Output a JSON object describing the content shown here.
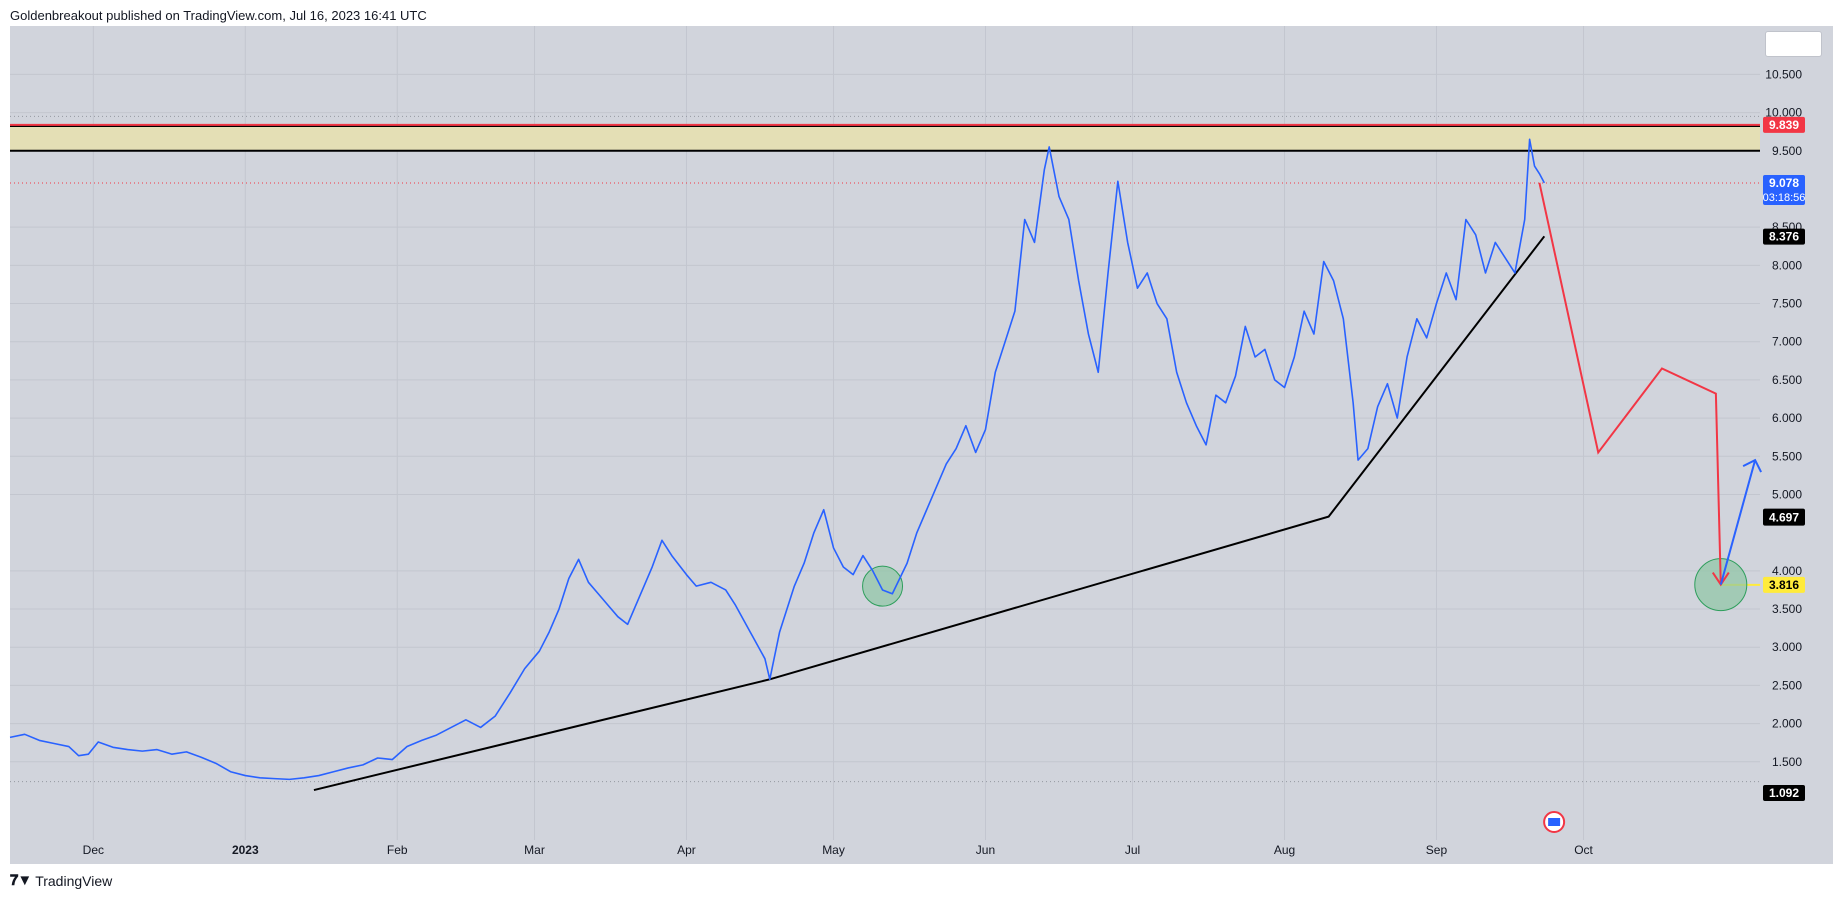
{
  "header": {
    "published": "Goldenbreakout published on TradingView.com, Jul 16, 2023 16:41 UTC"
  },
  "footer": {
    "brand": "TradingView",
    "logo_icon": "tradingview-logo-icon"
  },
  "colors": {
    "price_line": "#2962ff",
    "background": "#d1d4dc",
    "resistance_zone": "#e4dfb5",
    "red": "#f23645",
    "yellow": "#ffeb3b",
    "circle_fill": "#8fc6a4",
    "circle_stroke": "#2e9e5c",
    "label_dark": "#000000",
    "label_blue": "#2962ff",
    "label_red": "#f23645",
    "label_yellow": "#ffeb3b"
  },
  "chart_data": {
    "type": "line",
    "symbol_price_axis": {
      "ticks": [
        "10.500",
        "10.000",
        "9.500",
        "8.500",
        "8.000",
        "7.500",
        "7.000",
        "6.500",
        "6.000",
        "5.500",
        "5.000",
        "4.000",
        "3.500",
        "3.000",
        "2.500",
        "2.000",
        "1.500"
      ],
      "range": [
        1.0,
        10.95
      ]
    },
    "time_axis": {
      "ticks": [
        {
          "label": "Dec",
          "date": "2022-12-01",
          "bold": false
        },
        {
          "label": "2023",
          "date": "2023-01-01",
          "bold": true
        },
        {
          "label": "Feb",
          "date": "2023-02-01",
          "bold": false
        },
        {
          "label": "Mar",
          "date": "2023-03-01",
          "bold": false
        },
        {
          "label": "Apr",
          "date": "2023-04-01",
          "bold": false
        },
        {
          "label": "May",
          "date": "2023-05-01",
          "bold": false
        },
        {
          "label": "Jun",
          "date": "2023-06-01",
          "bold": false
        },
        {
          "label": "Jul",
          "date": "2023-07-01",
          "bold": false
        },
        {
          "label": "Aug",
          "date": "2023-08-01",
          "bold": false
        },
        {
          "label": "Sep",
          "date": "2023-09-01",
          "bold": false
        },
        {
          "label": "Oct",
          "date": "2023-10-01",
          "bold": false
        }
      ],
      "range": [
        "2022-11-14",
        "2023-11-06"
      ]
    },
    "series": [
      {
        "points": [
          [
            "2022-11-14",
            1.82
          ],
          [
            "2022-11-17",
            1.86
          ],
          [
            "2022-11-20",
            1.78
          ],
          [
            "2022-11-23",
            1.74
          ],
          [
            "2022-11-26",
            1.7
          ],
          [
            "2022-11-28",
            1.58
          ],
          [
            "2022-11-30",
            1.6
          ],
          [
            "2022-12-02",
            1.76
          ],
          [
            "2022-12-05",
            1.69
          ],
          [
            "2022-12-08",
            1.66
          ],
          [
            "2022-12-11",
            1.64
          ],
          [
            "2022-12-14",
            1.66
          ],
          [
            "2022-12-17",
            1.6
          ],
          [
            "2022-12-20",
            1.63
          ],
          [
            "2022-12-23",
            1.56
          ],
          [
            "2022-12-26",
            1.48
          ],
          [
            "2022-12-29",
            1.37
          ],
          [
            "2023-01-01",
            1.32
          ],
          [
            "2023-01-04",
            1.29
          ],
          [
            "2023-01-07",
            1.28
          ],
          [
            "2023-01-10",
            1.27
          ],
          [
            "2023-01-13",
            1.29
          ],
          [
            "2023-01-16",
            1.32
          ],
          [
            "2023-01-19",
            1.37
          ],
          [
            "2023-01-22",
            1.42
          ],
          [
            "2023-01-25",
            1.46
          ],
          [
            "2023-01-28",
            1.55
          ],
          [
            "2023-01-31",
            1.53
          ],
          [
            "2023-02-03",
            1.7
          ],
          [
            "2023-02-06",
            1.78
          ],
          [
            "2023-02-09",
            1.85
          ],
          [
            "2023-02-12",
            1.95
          ],
          [
            "2023-02-15",
            2.05
          ],
          [
            "2023-02-18",
            1.95
          ],
          [
            "2023-02-21",
            2.1
          ],
          [
            "2023-02-24",
            2.4
          ],
          [
            "2023-02-27",
            2.72
          ],
          [
            "2023-03-02",
            2.95
          ],
          [
            "2023-03-04",
            3.2
          ],
          [
            "2023-03-06",
            3.5
          ],
          [
            "2023-03-08",
            3.9
          ],
          [
            "2023-03-10",
            4.15
          ],
          [
            "2023-03-12",
            3.85
          ],
          [
            "2023-03-14",
            3.7
          ],
          [
            "2023-03-16",
            3.55
          ],
          [
            "2023-03-18",
            3.4
          ],
          [
            "2023-03-20",
            3.3
          ],
          [
            "2023-03-22",
            3.6
          ],
          [
            "2023-03-25",
            4.05
          ],
          [
            "2023-03-27",
            4.4
          ],
          [
            "2023-03-29",
            4.2
          ],
          [
            "2023-04-01",
            3.95
          ],
          [
            "2023-04-03",
            3.8
          ],
          [
            "2023-04-06",
            3.85
          ],
          [
            "2023-04-09",
            3.75
          ],
          [
            "2023-04-11",
            3.55
          ],
          [
            "2023-04-14",
            3.2
          ],
          [
            "2023-04-17",
            2.85
          ],
          [
            "2023-04-18",
            2.58
          ],
          [
            "2023-04-20",
            3.2
          ],
          [
            "2023-04-23",
            3.8
          ],
          [
            "2023-04-25",
            4.1
          ],
          [
            "2023-04-27",
            4.5
          ],
          [
            "2023-04-29",
            4.8
          ],
          [
            "2023-05-01",
            4.3
          ],
          [
            "2023-05-03",
            4.05
          ],
          [
            "2023-05-05",
            3.95
          ],
          [
            "2023-05-07",
            4.2
          ],
          [
            "2023-05-09",
            4.0
          ],
          [
            "2023-05-11",
            3.75
          ],
          [
            "2023-05-13",
            3.7
          ],
          [
            "2023-05-16",
            4.1
          ],
          [
            "2023-05-18",
            4.5
          ],
          [
            "2023-05-20",
            4.8
          ],
          [
            "2023-05-22",
            5.1
          ],
          [
            "2023-05-24",
            5.4
          ],
          [
            "2023-05-26",
            5.6
          ],
          [
            "2023-05-28",
            5.9
          ],
          [
            "2023-05-30",
            5.55
          ],
          [
            "2023-06-01",
            5.85
          ],
          [
            "2023-06-03",
            6.6
          ],
          [
            "2023-06-05",
            7.0
          ],
          [
            "2023-06-07",
            7.4
          ],
          [
            "2023-06-09",
            8.6
          ],
          [
            "2023-06-11",
            8.3
          ],
          [
            "2023-06-13",
            9.25
          ],
          [
            "2023-06-14",
            9.55
          ],
          [
            "2023-06-16",
            8.9
          ],
          [
            "2023-06-18",
            8.6
          ],
          [
            "2023-06-20",
            7.8
          ],
          [
            "2023-06-22",
            7.1
          ],
          [
            "2023-06-24",
            6.6
          ],
          [
            "2023-06-26",
            7.9
          ],
          [
            "2023-06-28",
            9.1
          ],
          [
            "2023-06-30",
            8.3
          ],
          [
            "2023-07-02",
            7.7
          ],
          [
            "2023-07-04",
            7.9
          ],
          [
            "2023-07-06",
            7.5
          ],
          [
            "2023-07-08",
            7.3
          ],
          [
            "2023-07-10",
            6.6
          ],
          [
            "2023-07-12",
            6.2
          ],
          [
            "2023-07-14",
            5.9
          ],
          [
            "2023-07-16",
            5.65
          ],
          [
            "2023-07-18",
            6.3
          ],
          [
            "2023-07-20",
            6.2
          ],
          [
            "2023-07-22",
            6.55
          ],
          [
            "2023-07-24",
            7.2
          ],
          [
            "2023-07-26",
            6.8
          ],
          [
            "2023-07-28",
            6.9
          ],
          [
            "2023-07-30",
            6.5
          ],
          [
            "2023-08-01",
            6.4
          ],
          [
            "2023-08-03",
            6.8
          ],
          [
            "2023-08-05",
            7.4
          ],
          [
            "2023-08-07",
            7.1
          ],
          [
            "2023-08-09",
            8.05
          ],
          [
            "2023-08-11",
            7.8
          ],
          [
            "2023-08-13",
            7.3
          ],
          [
            "2023-08-15",
            6.2
          ],
          [
            "2023-08-16",
            5.45
          ],
          [
            "2023-08-18",
            5.6
          ],
          [
            "2023-08-20",
            6.15
          ],
          [
            "2023-08-22",
            6.45
          ],
          [
            "2023-08-24",
            6.0
          ],
          [
            "2023-08-26",
            6.8
          ],
          [
            "2023-08-28",
            7.3
          ],
          [
            "2023-08-30",
            7.05
          ],
          [
            "2023-09-01",
            7.5
          ],
          [
            "2023-09-03",
            7.9
          ],
          [
            "2023-09-05",
            7.55
          ],
          [
            "2023-09-07",
            8.6
          ],
          [
            "2023-09-09",
            8.4
          ],
          [
            "2023-09-11",
            7.9
          ],
          [
            "2023-09-13",
            8.3
          ],
          [
            "2023-09-15",
            8.1
          ],
          [
            "2023-09-17",
            7.9
          ],
          [
            "2023-09-19",
            8.6
          ],
          [
            "2023-09-20",
            9.65
          ],
          [
            "2023-09-21",
            9.3
          ],
          [
            "2023-09-22",
            9.2
          ],
          [
            "2023-09-23",
            9.08
          ]
        ]
      }
    ],
    "drawings": {
      "resistance_zone": [
        9.5,
        9.82
      ],
      "red_top_line": 9.839,
      "trendline": [
        [
          "2023-01-15",
          1.13
        ],
        [
          "2023-04-18",
          2.58
        ],
        [
          "2023-08-10",
          4.71
        ],
        [
          "2023-09-23",
          8.38
        ]
      ],
      "projection_red": [
        [
          "2023-09-22",
          9.08
        ],
        [
          "2023-10-04",
          5.55
        ],
        [
          "2023-10-17",
          6.65
        ],
        [
          "2023-10-28",
          6.32
        ],
        [
          "2023-10-29",
          3.82
        ]
      ],
      "projection_blue": [
        [
          "2023-10-29",
          3.82
        ],
        [
          "2023-11-05",
          5.45
        ]
      ],
      "yellow_line": 3.816,
      "circles": [
        [
          "2023-05-11",
          3.8
        ],
        [
          "2023-10-29",
          3.82
        ]
      ],
      "dotted_levels": [
        9.95,
        9.078,
        1.24
      ]
    },
    "price_labels": [
      {
        "text": "9.839",
        "value": 9.839,
        "style": "red"
      },
      {
        "text": "9.078",
        "sub": "03:18:56",
        "value": 9.078,
        "style": "blue"
      },
      {
        "text": "8.376",
        "value": 8.376,
        "style": "dark"
      },
      {
        "text": "4.710",
        "value": 4.71,
        "style": "dark"
      },
      {
        "text": "4.697",
        "value": 4.697,
        "style": "dark"
      },
      {
        "text": "3.816",
        "value": 3.816,
        "style": "yellow"
      },
      {
        "text": "1.092",
        "value": 1.092,
        "style": "dark"
      }
    ],
    "event_icon": "earnings-flag-icon"
  }
}
